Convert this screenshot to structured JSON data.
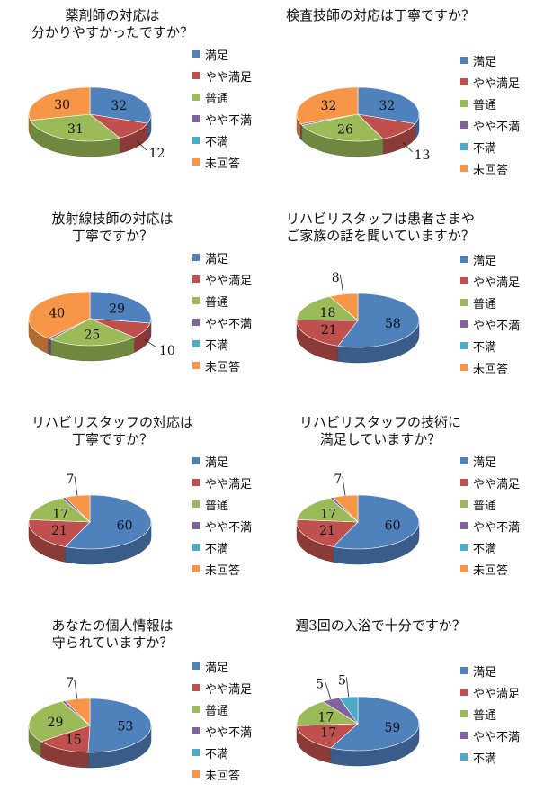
{
  "colors": [
    "#4f81bd",
    "#c0504d",
    "#9bbb59",
    "#8064a2",
    "#4bacc6",
    "#f79646"
  ],
  "chart_data": [
    {
      "type": "pie",
      "title": "薬剤師の対応は\n分かりやすかったですか？",
      "categories": [
        "満足",
        "やや満足",
        "普通",
        "やや不満",
        "不満",
        "未回答"
      ],
      "values": [
        32,
        12,
        31,
        0,
        0,
        30
      ]
    },
    {
      "type": "pie",
      "title": "検査技師の対応は丁寧ですか？",
      "categories": [
        "満足",
        "やや満足",
        "普通",
        "やや不満",
        "不満",
        "未回答"
      ],
      "values": [
        32,
        13,
        26,
        1,
        0,
        32
      ]
    },
    {
      "type": "pie",
      "title": "放射線技師の対応は\n丁寧ですか？",
      "categories": [
        "満足",
        "やや満足",
        "普通",
        "やや不満",
        "不満",
        "未回答"
      ],
      "values": [
        29,
        10,
        25,
        1,
        0,
        40
      ]
    },
    {
      "type": "pie",
      "title": "リハビリスタッフは患者さまや\nご家族の話を聞いていますか？",
      "categories": [
        "満足",
        "やや満足",
        "普通",
        "やや不満",
        "不満",
        "未回答"
      ],
      "values": [
        58,
        21,
        18,
        0,
        0,
        8
      ]
    },
    {
      "type": "pie",
      "title": "リハビリスタッフの対応は\n丁寧ですか？",
      "categories": [
        "満足",
        "やや満足",
        "普通",
        "やや不満",
        "不満",
        "未回答"
      ],
      "values": [
        60,
        21,
        17,
        1,
        0,
        7
      ]
    },
    {
      "type": "pie",
      "title": "リハビリスタッフの技術に\n満足していますか？",
      "categories": [
        "満足",
        "やや満足",
        "普通",
        "やや不満",
        "不満",
        "未回答"
      ],
      "values": [
        60,
        21,
        17,
        1,
        0,
        7
      ]
    },
    {
      "type": "pie",
      "title": "あなたの個人情報は\n守られていますか？",
      "categories": [
        "満足",
        "やや満足",
        "普通",
        "やや不満",
        "不満",
        "未回答"
      ],
      "values": [
        53,
        15,
        29,
        1,
        0,
        7
      ]
    },
    {
      "type": "pie",
      "title": "週3回の入浴で十分ですか？",
      "categories": [
        "満足",
        "やや満足",
        "普通",
        "やや不満",
        "不満"
      ],
      "values": [
        59,
        17,
        17,
        5,
        5
      ]
    }
  ]
}
